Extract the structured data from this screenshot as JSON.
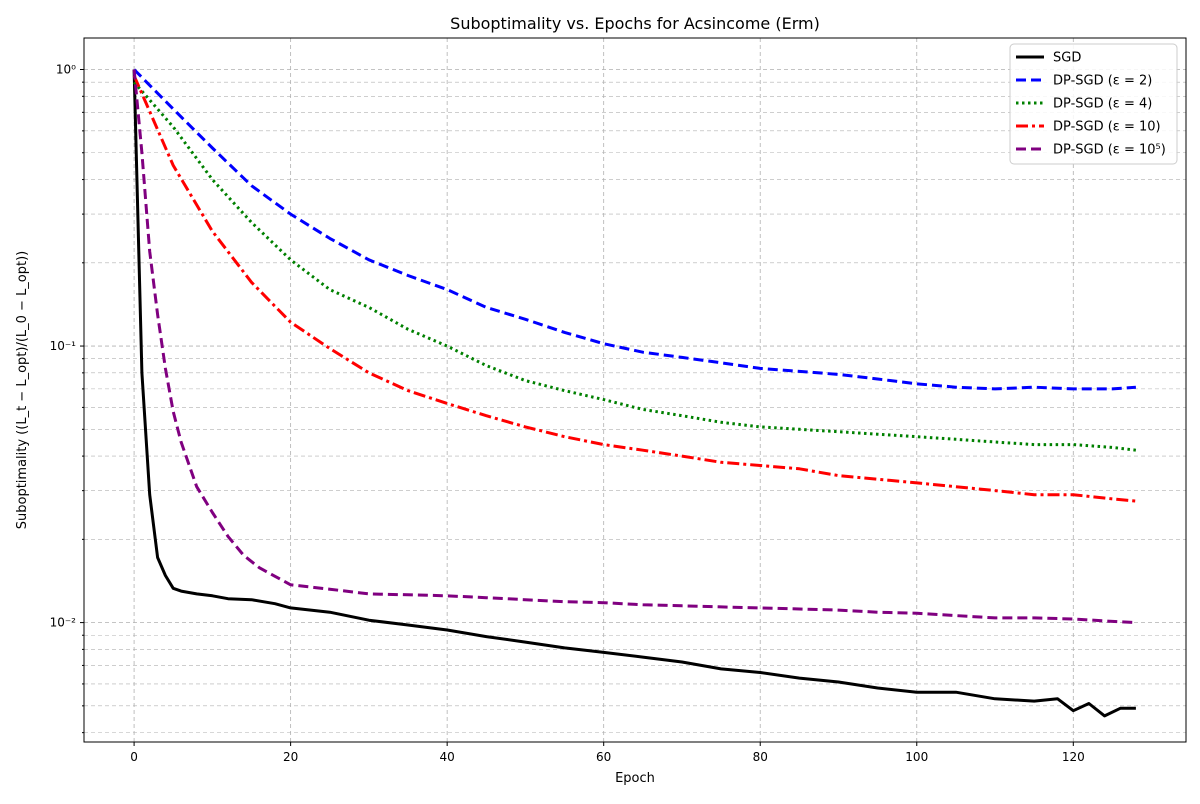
{
  "chart_data": {
    "type": "line",
    "title": "Suboptimality vs. Epochs for Acsincome (Erm)",
    "xlabel": "Epoch",
    "ylabel": "Suboptimality ((L_t − L_opt)/(L_0 − L_opt))",
    "xlim": [
      -6.4,
      134.4
    ],
    "ylim": [
      0.0037,
      1.3
    ],
    "yscale": "log",
    "grid": true,
    "legend_position": "top-right",
    "x_ticks": [
      0,
      20,
      40,
      60,
      80,
      100,
      120
    ],
    "x_tick_labels": [
      "0",
      "20",
      "40",
      "60",
      "80",
      "100",
      "120"
    ],
    "y_ticks": [
      0.01,
      0.1,
      1
    ],
    "y_tick_labels": [
      "10⁻²",
      "10⁻¹",
      "10⁰"
    ],
    "series": [
      {
        "name": "SGD",
        "color": "#000000",
        "style": "solid",
        "x": [
          0,
          1,
          2,
          3,
          4,
          5,
          6,
          8,
          10,
          12,
          15,
          18,
          20,
          25,
          30,
          35,
          40,
          45,
          50,
          55,
          60,
          65,
          70,
          75,
          80,
          85,
          90,
          95,
          100,
          105,
          110,
          115,
          118,
          120,
          122,
          124,
          126,
          128
        ],
        "y": [
          1.0,
          0.08,
          0.029,
          0.0172,
          0.0148,
          0.0133,
          0.013,
          0.0127,
          0.0125,
          0.0122,
          0.0121,
          0.0117,
          0.0113,
          0.0109,
          0.0102,
          0.0098,
          0.0094,
          0.0089,
          0.0085,
          0.0081,
          0.0078,
          0.0075,
          0.0072,
          0.0068,
          0.0066,
          0.0063,
          0.0061,
          0.0058,
          0.0056,
          0.0056,
          0.0053,
          0.0052,
          0.0053,
          0.0048,
          0.0051,
          0.0046,
          0.0049,
          0.0049
        ]
      },
      {
        "name": "DP-SGD (ε = 2)",
        "color": "#0000ff",
        "style": "dashed",
        "x": [
          0,
          5,
          10,
          15,
          20,
          25,
          30,
          35,
          40,
          45,
          50,
          55,
          60,
          65,
          70,
          75,
          80,
          85,
          90,
          95,
          100,
          105,
          110,
          115,
          120,
          125,
          128
        ],
        "y": [
          1.0,
          0.72,
          0.52,
          0.38,
          0.3,
          0.245,
          0.205,
          0.18,
          0.16,
          0.138,
          0.125,
          0.112,
          0.102,
          0.095,
          0.091,
          0.087,
          0.083,
          0.081,
          0.079,
          0.076,
          0.073,
          0.071,
          0.07,
          0.071,
          0.07,
          0.07,
          0.071
        ]
      },
      {
        "name": "DP-SGD (ε = 4)",
        "color": "#008000",
        "style": "dotted",
        "x": [
          0,
          5,
          10,
          15,
          20,
          25,
          30,
          35,
          40,
          45,
          50,
          55,
          60,
          65,
          70,
          75,
          80,
          85,
          90,
          95,
          100,
          105,
          110,
          115,
          120,
          125,
          128
        ],
        "y": [
          0.9,
          0.62,
          0.4,
          0.28,
          0.205,
          0.16,
          0.138,
          0.115,
          0.1,
          0.085,
          0.075,
          0.069,
          0.064,
          0.059,
          0.056,
          0.053,
          0.051,
          0.05,
          0.049,
          0.048,
          0.047,
          0.046,
          0.045,
          0.044,
          0.044,
          0.043,
          0.042
        ]
      },
      {
        "name": "DP-SGD (ε = 10)",
        "color": "#ff0000",
        "style": "dashdot",
        "x": [
          0,
          5,
          10,
          15,
          20,
          25,
          30,
          35,
          40,
          45,
          50,
          55,
          60,
          65,
          70,
          75,
          80,
          85,
          90,
          95,
          100,
          105,
          110,
          115,
          120,
          125,
          128
        ],
        "y": [
          0.95,
          0.45,
          0.26,
          0.17,
          0.122,
          0.098,
          0.08,
          0.069,
          0.062,
          0.056,
          0.051,
          0.047,
          0.044,
          0.042,
          0.04,
          0.038,
          0.037,
          0.036,
          0.034,
          0.033,
          0.032,
          0.031,
          0.03,
          0.029,
          0.029,
          0.028,
          0.0275
        ]
      },
      {
        "name": "DP-SGD (ε = 10⁵)",
        "color": "#800080",
        "style": "dashed",
        "x": [
          0,
          1,
          2,
          3,
          4,
          5,
          6,
          8,
          10,
          12,
          14,
          16,
          18,
          20,
          25,
          30,
          35,
          40,
          45,
          50,
          55,
          60,
          65,
          70,
          75,
          80,
          85,
          90,
          95,
          100,
          105,
          110,
          115,
          120,
          125,
          128
        ],
        "y": [
          1.0,
          0.5,
          0.22,
          0.13,
          0.083,
          0.058,
          0.045,
          0.031,
          0.025,
          0.0205,
          0.0175,
          0.0158,
          0.0147,
          0.0137,
          0.0132,
          0.0127,
          0.0126,
          0.0125,
          0.0123,
          0.0121,
          0.0119,
          0.0118,
          0.0116,
          0.0115,
          0.0114,
          0.0113,
          0.0112,
          0.0111,
          0.0109,
          0.0108,
          0.0106,
          0.0104,
          0.0104,
          0.0103,
          0.0101,
          0.01
        ]
      }
    ],
    "legend": {
      "entries": [
        "SGD",
        "DP-SGD (ε = 2)",
        "DP-SGD (ε = 4)",
        "DP-SGD (ε = 10)",
        "DP-SGD (ε = 10⁵)"
      ]
    }
  }
}
